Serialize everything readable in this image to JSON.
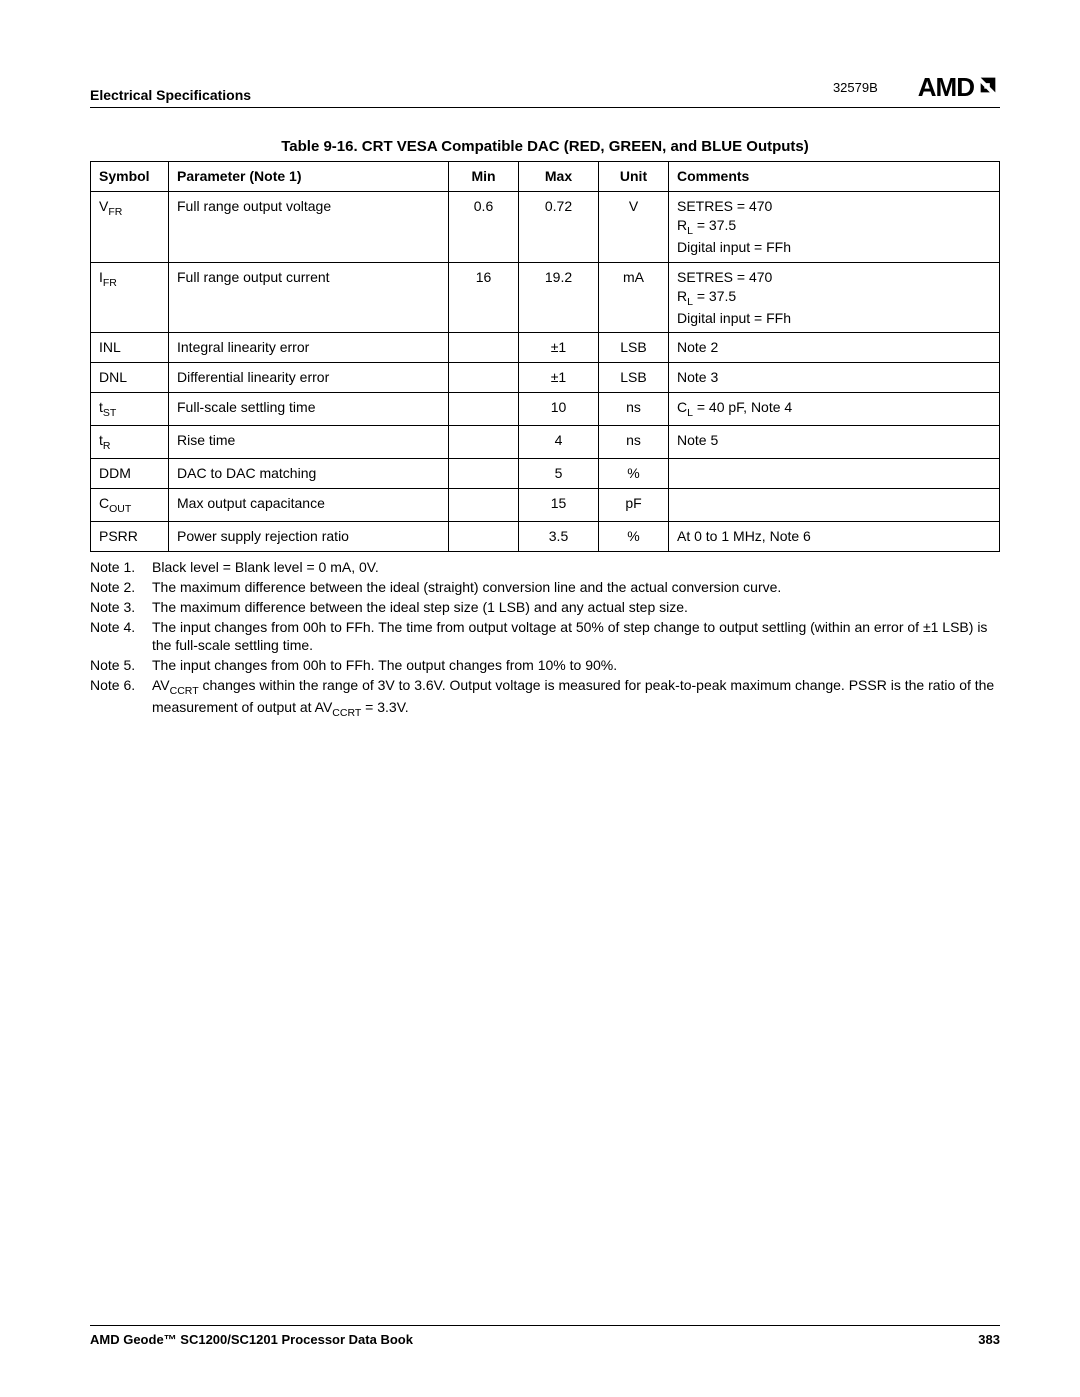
{
  "header": {
    "section_title": "Electrical Specifications",
    "doc_code": "32579B",
    "logo_text": "AMD"
  },
  "table": {
    "caption": "Table 9-16.  CRT VESA Compatible DAC (RED, GREEN, and BLUE Outputs)",
    "columns": {
      "symbol": "Symbol",
      "parameter": "Parameter (Note 1)",
      "min": "Min",
      "max": "Max",
      "unit": "Unit",
      "comments": "Comments"
    },
    "rows": [
      {
        "symbol_base": "V",
        "symbol_sub": "FR",
        "parameter": "Full range output voltage",
        "min": "0.6",
        "max": "0.72",
        "unit": "V",
        "comments_lines": [
          "SETRES = 470",
          "R<sub>L</sub> = 37.5",
          "Digital input = FFh"
        ]
      },
      {
        "symbol_base": "I",
        "symbol_sub": "FR",
        "parameter": "Full range output current",
        "min": "16",
        "max": "19.2",
        "unit": "mA",
        "comments_lines": [
          "SETRES = 470",
          "R<sub>L</sub> = 37.5",
          "Digital input = FFh"
        ]
      },
      {
        "symbol_base": "INL",
        "symbol_sub": "",
        "parameter": "Integral linearity error",
        "min": "",
        "max": "±1",
        "unit": "LSB",
        "comments_lines": [
          "Note 2"
        ]
      },
      {
        "symbol_base": "DNL",
        "symbol_sub": "",
        "parameter": "Differential linearity error",
        "min": "",
        "max": "±1",
        "unit": "LSB",
        "comments_lines": [
          "Note 3"
        ]
      },
      {
        "symbol_base": "t",
        "symbol_sub": "ST",
        "parameter": "Full-scale settling time",
        "min": "",
        "max": "10",
        "unit": "ns",
        "comments_lines": [
          "C<sub>L</sub> = 40 pF, Note 4"
        ]
      },
      {
        "symbol_base": "t",
        "symbol_sub": "R",
        "parameter": "Rise time",
        "min": "",
        "max": "4",
        "unit": "ns",
        "comments_lines": [
          "Note 5"
        ]
      },
      {
        "symbol_base": "DDM",
        "symbol_sub": "",
        "parameter": "DAC to DAC matching",
        "min": "",
        "max": "5",
        "unit": "%",
        "comments_lines": [
          ""
        ]
      },
      {
        "symbol_base": "C",
        "symbol_sub": "OUT",
        "parameter": "Max output capacitance",
        "min": "",
        "max": "15",
        "unit": "pF",
        "comments_lines": [
          ""
        ]
      },
      {
        "symbol_base": "PSRR",
        "symbol_sub": "",
        "parameter": "Power supply rejection ratio",
        "min": "",
        "max": "3.5",
        "unit": "%",
        "comments_lines": [
          "At 0 to 1 MHz, Note 6"
        ]
      }
    ]
  },
  "notes": [
    {
      "label": "Note 1.",
      "text": "Black level = Blank level = 0 mA, 0V."
    },
    {
      "label": "Note 2.",
      "text": "The maximum difference between the ideal (straight) conversion line and the actual conversion curve."
    },
    {
      "label": "Note 3.",
      "text": "The maximum difference between the ideal step size (1 LSB) and any actual step size."
    },
    {
      "label": "Note 4.",
      "text": "The input changes from 00h to FFh. The time from output voltage at 50% of step change to output settling (within an error of ±1 LSB) is the full-scale settling time."
    },
    {
      "label": "Note 5.",
      "text": "The input changes from 00h to FFh. The output changes from 10% to 90%."
    },
    {
      "label": "Note 6.",
      "text": "AV<sub>CCRT</sub> changes within the range of 3V to 3.6V. Output voltage is measured for peak-to-peak maximum change. PSSR is the ratio of the measurement of output at AV<sub>CCRT</sub> = 3.3V."
    }
  ],
  "footer": {
    "book_title": "AMD Geode™ SC1200/SC1201 Processor Data Book",
    "page_number": "383"
  }
}
